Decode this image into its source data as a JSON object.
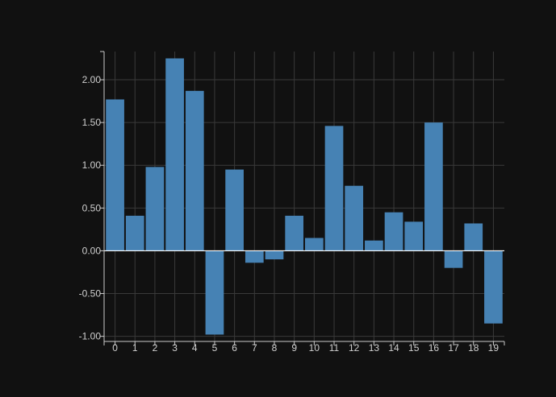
{
  "chart_data": {
    "type": "bar",
    "categories": [
      "0",
      "1",
      "2",
      "3",
      "4",
      "5",
      "6",
      "7",
      "8",
      "9",
      "10",
      "11",
      "12",
      "13",
      "14",
      "15",
      "16",
      "17",
      "18",
      "19"
    ],
    "values": [
      1.77,
      0.41,
      0.98,
      2.25,
      1.87,
      -0.98,
      0.95,
      -0.14,
      -0.1,
      0.41,
      0.15,
      1.46,
      0.76,
      0.12,
      0.45,
      0.34,
      1.5,
      -0.2,
      0.32,
      -0.85
    ],
    "y_ticks": [
      "-1.00",
      "-0.50",
      "0.00",
      "0.50",
      "1.00",
      "1.50",
      "2.00"
    ],
    "ylim": [
      -1.06,
      2.33
    ],
    "grid": true,
    "title": "",
    "xlabel": "",
    "ylabel": "",
    "colors": {
      "background": "#111111",
      "bar": "#4682b4",
      "grid": "#3a3a3a",
      "axis": "#cccccc",
      "zero_line": "#ffffff",
      "text": "#cfcfcf"
    }
  }
}
